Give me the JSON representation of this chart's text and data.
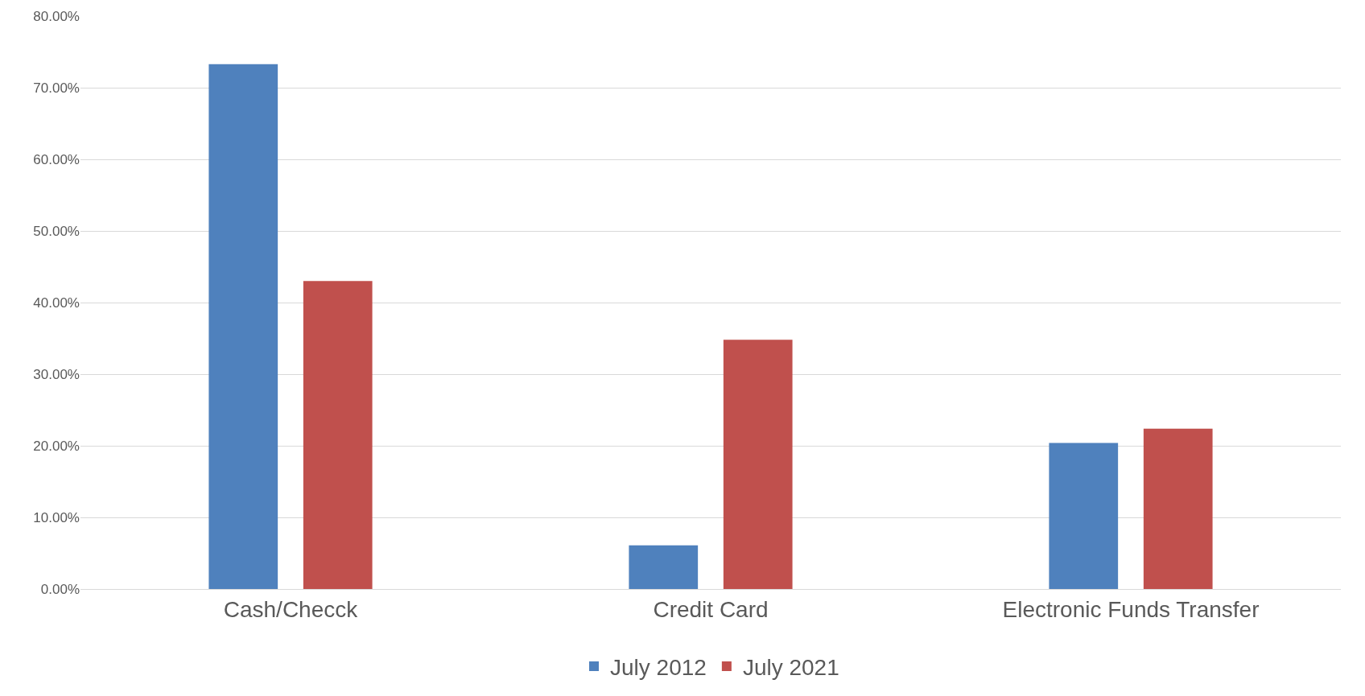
{
  "chart_data": {
    "type": "bar",
    "categories": [
      "Cash/Checck",
      "Credit Card",
      "Electronic Funds Transfer"
    ],
    "series": [
      {
        "name": "July 2012",
        "color": "#4f81bd",
        "values": [
          73.3,
          6.1,
          20.4
        ]
      },
      {
        "name": "July 2021",
        "color": "#c0504d",
        "values": [
          43.0,
          34.8,
          22.4
        ]
      }
    ],
    "ylim": [
      0,
      80
    ],
    "yticks": [
      {
        "value": 0,
        "label": "0.00%"
      },
      {
        "value": 10,
        "label": "10.00%"
      },
      {
        "value": 20,
        "label": "20.00%"
      },
      {
        "value": 30,
        "label": "30.00%"
      },
      {
        "value": 40,
        "label": "40.00%"
      },
      {
        "value": 50,
        "label": "50.00%"
      },
      {
        "value": 60,
        "label": "60.00%"
      },
      {
        "value": 70,
        "label": "70.00%"
      },
      {
        "value": 80,
        "label": "80.00%"
      }
    ],
    "grid": "y",
    "legend": "bottom"
  }
}
